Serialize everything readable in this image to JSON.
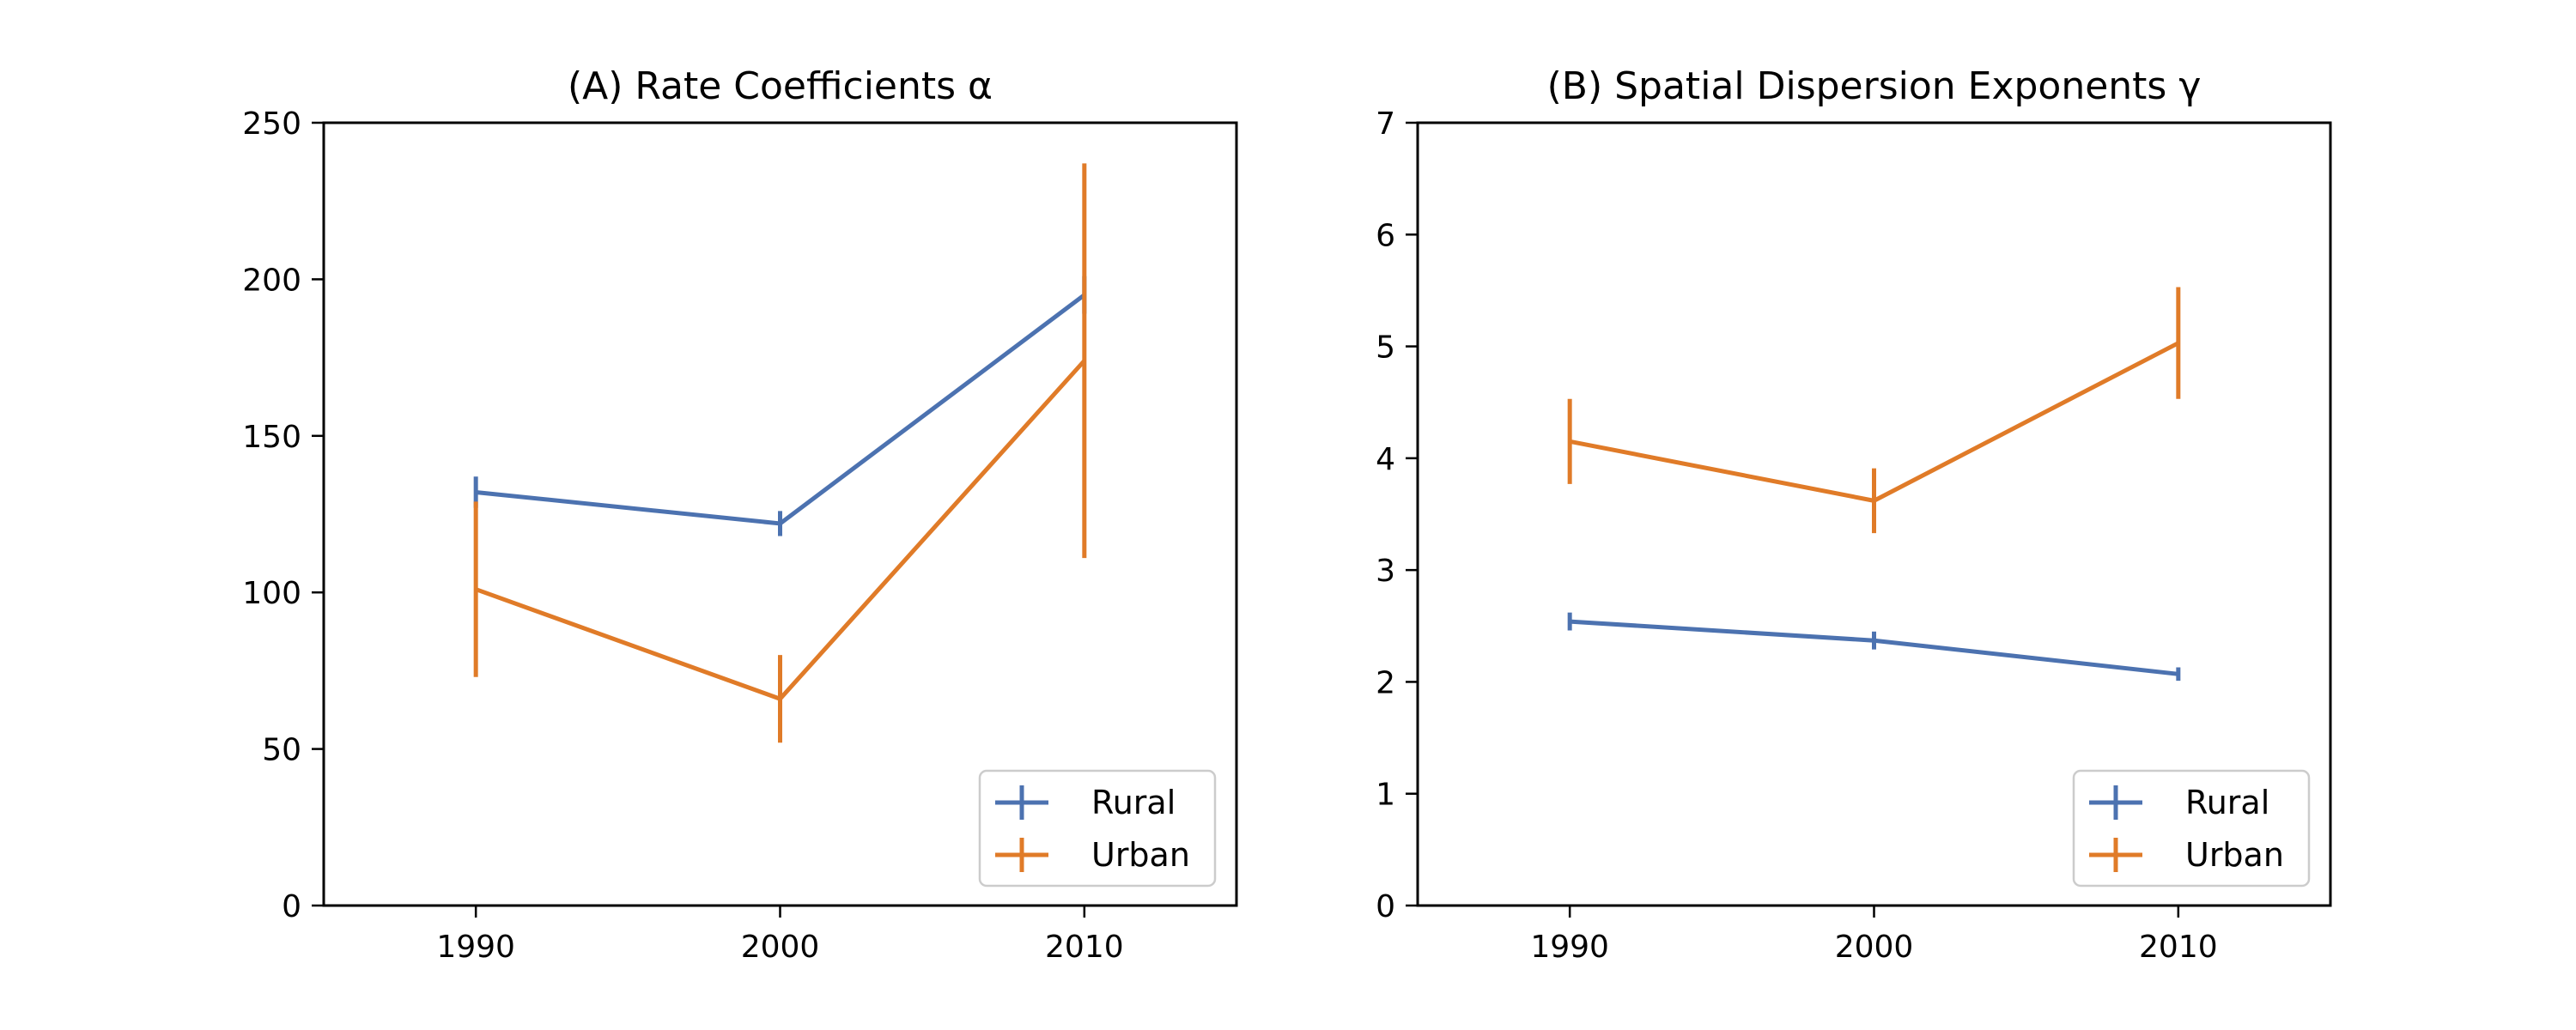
{
  "chart_data": [
    {
      "type": "line",
      "title": "(A) Rate Coefficients α",
      "xlabel": "",
      "ylabel": "",
      "x": [
        1990,
        2000,
        2010
      ],
      "xlim": [
        1985,
        2015
      ],
      "ylim": [
        0,
        250
      ],
      "xticks": [
        1990,
        2000,
        2010
      ],
      "yticks": [
        0,
        50,
        100,
        150,
        200,
        250
      ],
      "grid": false,
      "legend_position": "lower-right",
      "series": [
        {
          "name": "Rural",
          "color": "#4c72b0",
          "values": [
            132,
            122,
            195
          ],
          "error": [
            5,
            4,
            6
          ]
        },
        {
          "name": "Urban",
          "color": "#e07b28",
          "values": [
            101,
            66,
            174
          ],
          "error": [
            28,
            14,
            63
          ]
        }
      ]
    },
    {
      "type": "line",
      "title": "(B) Spatial Dispersion Exponents γ",
      "xlabel": "",
      "ylabel": "",
      "x": [
        1990,
        2000,
        2010
      ],
      "xlim": [
        1985,
        2015
      ],
      "ylim": [
        0,
        7
      ],
      "xticks": [
        1990,
        2000,
        2010
      ],
      "yticks": [
        0,
        1,
        2,
        3,
        4,
        5,
        6,
        7
      ],
      "grid": false,
      "legend_position": "lower-right",
      "series": [
        {
          "name": "Rural",
          "color": "#4c72b0",
          "values": [
            2.54,
            2.37,
            2.07
          ],
          "error": [
            0.08,
            0.08,
            0.06
          ]
        },
        {
          "name": "Urban",
          "color": "#e07b28",
          "values": [
            4.15,
            3.62,
            5.03
          ],
          "error": [
            0.38,
            0.29,
            0.5
          ]
        }
      ]
    }
  ]
}
